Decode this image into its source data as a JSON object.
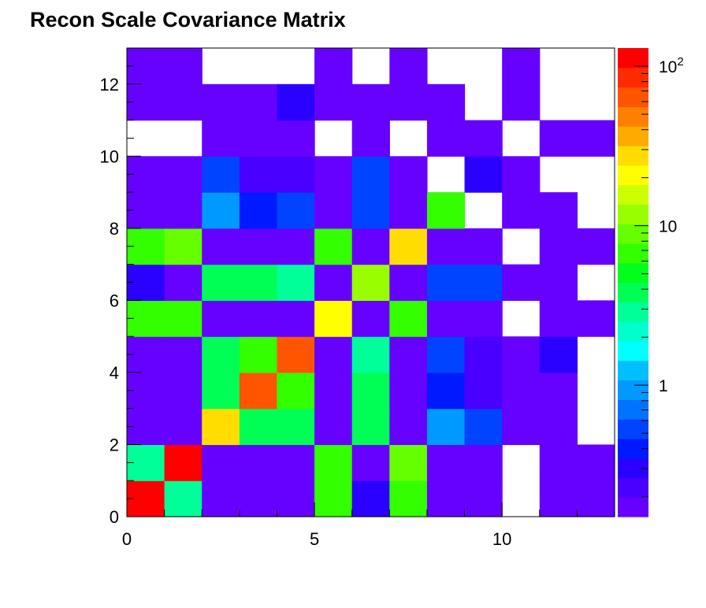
{
  "chart_data": {
    "type": "heatmap",
    "title": "Recon Scale Covariance Matrix",
    "xlabel": "",
    "ylabel": "",
    "xlim": [
      0,
      13
    ],
    "ylim": [
      0,
      13
    ],
    "nbins": 13,
    "x_ticks": [
      0,
      5,
      10
    ],
    "y_ticks": [
      0,
      2,
      4,
      6,
      8,
      10,
      12
    ],
    "color_scale": "log",
    "zlim": [
      0.15,
      130
    ],
    "palette_ticks": [
      {
        "value": 1,
        "label": "1"
      },
      {
        "value": 10,
        "label": "10"
      },
      {
        "value": 100,
        "label": "10",
        "sup": "2"
      }
    ],
    "palette_colors": [
      "#6600ff",
      "#4a00ff",
      "#2a00ff",
      "#001aff",
      "#0044ff",
      "#0073ff",
      "#0099ff",
      "#00bfff",
      "#00ffff",
      "#00ffcc",
      "#00ff99",
      "#00ff55",
      "#00ff1a",
      "#33ff00",
      "#66ff00",
      "#99ff00",
      "#ccff00",
      "#ffff00",
      "#ffdd00",
      "#ffaa00",
      "#ff8000",
      "#ff5500",
      "#ff2b00",
      "#ff0000"
    ],
    "grid": false,
    "row_order": "y=0 at bottom; each row lists 13 bins left to right; 0 = empty (white) bin",
    "z": [
      [
        130,
        2.8,
        0.16,
        0.16,
        0.16,
        6,
        0.3,
        6.5,
        0.16,
        0.16,
        0,
        0.16,
        0.16
      ],
      [
        2.8,
        130,
        0.16,
        0.16,
        0.16,
        6,
        0.16,
        10,
        0.16,
        0.16,
        0,
        0.16,
        0.16
      ],
      [
        0.16,
        0.16,
        30,
        3.5,
        3.5,
        0.16,
        3.5,
        0.16,
        1,
        0.6,
        0.16,
        0.18,
        0
      ],
      [
        0.16,
        0.16,
        3.5,
        60,
        6,
        0.16,
        3.5,
        0.16,
        0.4,
        0.25,
        0.16,
        0.16,
        0
      ],
      [
        0.16,
        0.16,
        3.5,
        6,
        60,
        0.16,
        3,
        0.16,
        0.6,
        0.25,
        0.16,
        0.3,
        0
      ],
      [
        6.5,
        6.5,
        0.16,
        0.16,
        0.16,
        20,
        0.16,
        6,
        0.16,
        0.16,
        0,
        0.16,
        0.16
      ],
      [
        0.3,
        0.16,
        3.5,
        3.5,
        3,
        0.16,
        12,
        0.16,
        0.6,
        0.6,
        0.16,
        0.18,
        0
      ],
      [
        6,
        10,
        0.16,
        0.16,
        0.16,
        6,
        0.16,
        30,
        0.16,
        0.16,
        0,
        0.16,
        0.16
      ],
      [
        0.16,
        0.16,
        1,
        0.4,
        0.6,
        0.16,
        0.6,
        0.16,
        6,
        0,
        0.16,
        0.16,
        0
      ],
      [
        0.16,
        0.16,
        0.6,
        0.25,
        0.25,
        0.16,
        0.6,
        0.16,
        0,
        0.3,
        0.16,
        0,
        0
      ],
      [
        0,
        0,
        0.16,
        0.16,
        0.16,
        0,
        0.16,
        0,
        0.16,
        0.16,
        0,
        0.16,
        0.16
      ],
      [
        0.16,
        0.16,
        0.18,
        0.16,
        0.3,
        0.16,
        0.18,
        0.16,
        0.16,
        0,
        0.16,
        0,
        0
      ],
      [
        0.16,
        0.16,
        0,
        0,
        0,
        0.16,
        0,
        0.16,
        0,
        0,
        0.16,
        0,
        0
      ]
    ]
  }
}
